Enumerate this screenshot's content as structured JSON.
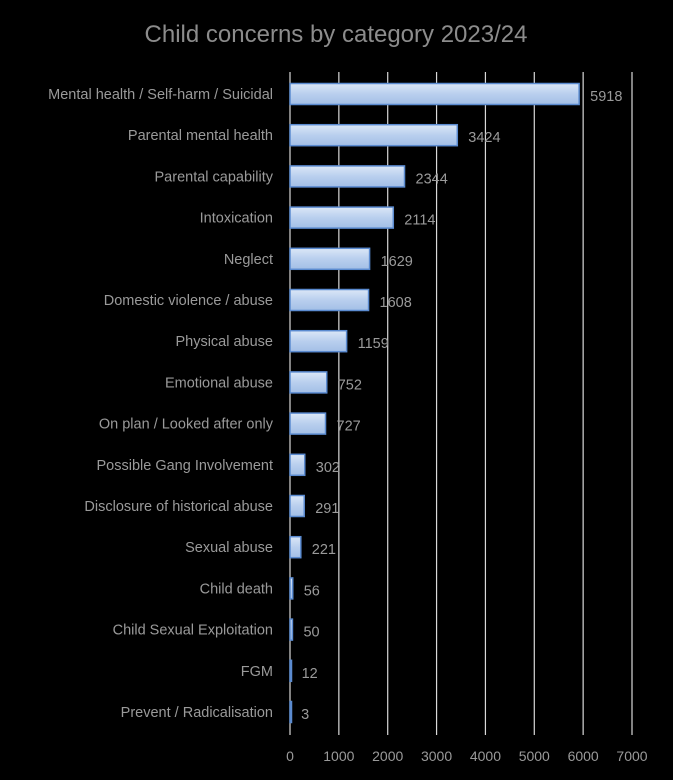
{
  "chart_data": {
    "type": "bar",
    "orientation": "horizontal",
    "title": "Child concerns by category 2023/24",
    "xlabel": "",
    "ylabel": "",
    "xlim": [
      0,
      7000
    ],
    "x_ticks": [
      0,
      1000,
      2000,
      3000,
      4000,
      5000,
      6000,
      7000
    ],
    "x_tick_labels": [
      "0",
      "1000",
      "2000",
      "3000",
      "4000",
      "5000",
      "6000",
      "7000"
    ],
    "grid": true,
    "legend": "none",
    "bar_color": "#c5d7f0",
    "bar_edge_color": "#5b8bd0",
    "categories": [
      "Mental health / Self-harm / Suicidal",
      "Parental mental health",
      "Parental capability",
      "Intoxication",
      "Neglect",
      "Domestic violence / abuse",
      "Physical abuse",
      "Emotional abuse",
      "On plan / Looked after only",
      "Possible Gang Involvement",
      "Disclosure of historical abuse",
      "Sexual abuse",
      "Child death",
      "Child Sexual Exploitation",
      "FGM",
      "Prevent / Radicalisation"
    ],
    "values": [
      5918,
      3424,
      2344,
      2114,
      1629,
      1608,
      1159,
      752,
      727,
      302,
      291,
      221,
      56,
      50,
      12,
      3
    ],
    "value_labels": [
      "5918",
      "3424",
      "2344",
      "2114",
      "1629",
      "1608",
      "1159",
      "752",
      "727",
      "302",
      "291",
      "221",
      "56",
      "50",
      "12",
      "3"
    ]
  }
}
